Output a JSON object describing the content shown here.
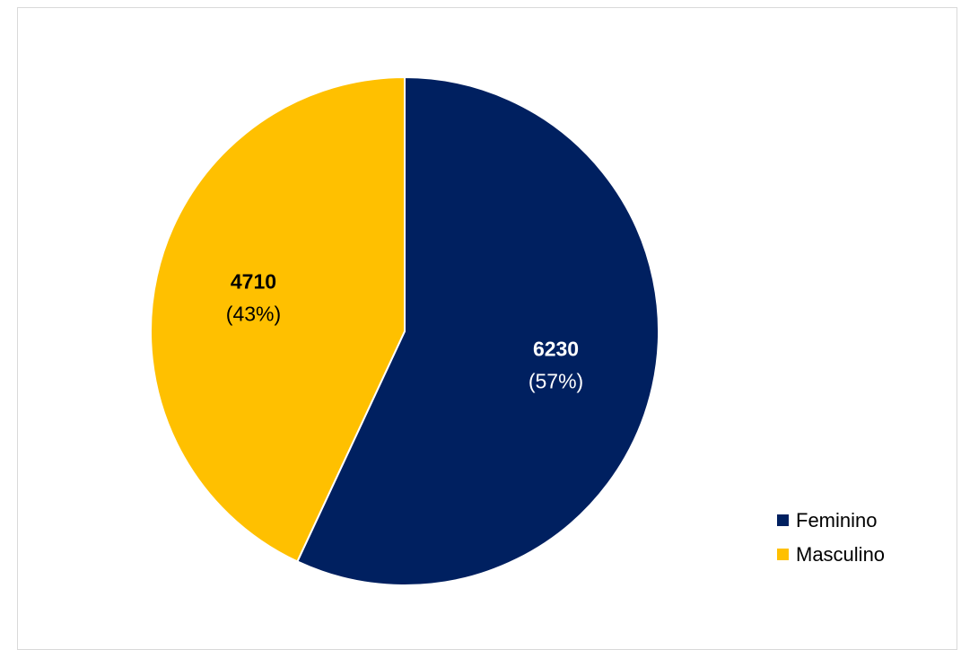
{
  "chart_data": {
    "type": "pie",
    "title": "",
    "categories": [
      "Feminino",
      "Masculino"
    ],
    "values": [
      6230,
      4710
    ],
    "percent_labels": [
      "(57%)",
      "(43%)"
    ],
    "colors": [
      "#002060",
      "#FFC000"
    ],
    "label_colors": [
      "#ffffff",
      "#000000"
    ],
    "start_angle_deg": 0,
    "direction": "clockwise",
    "legend_position": "right"
  }
}
